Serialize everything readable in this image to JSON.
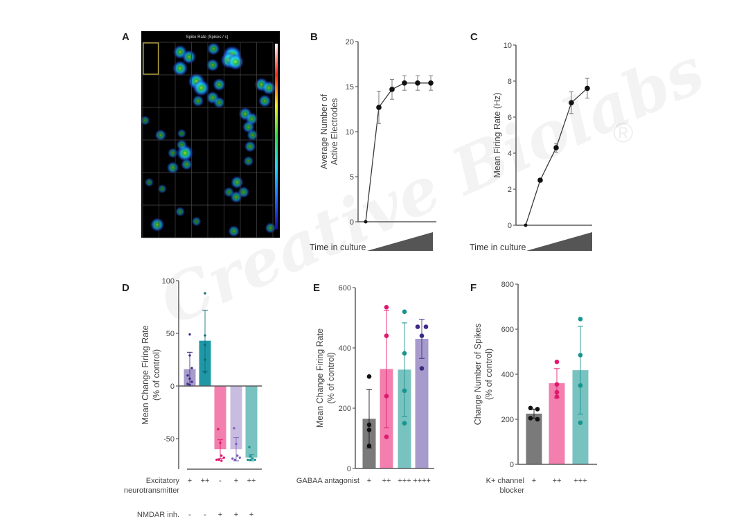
{
  "figure": {
    "watermark": "Creative Biolabs",
    "watermark_mark": "®",
    "colors": {
      "axis": "#5a5a5a",
      "line": "#3a3a3a",
      "marker": "#111111",
      "grey_bar": "#7a7a7a",
      "pink_bar": "#f27fae",
      "pink_dot": "#e0186e",
      "teal_bar": "#78c2c0",
      "teal_dot": "#17958e",
      "purple_bar": "#a79bcb",
      "purple_dot": "#3c2a86",
      "darkteal_bar": "#1f97a6",
      "lavender_bar": "#c8bde0",
      "heat_bg": "#000000"
    }
  },
  "chart_data": [
    {
      "panel": "A",
      "type": "heatmap",
      "title": "Spike Rate (Spikes / s)",
      "grid": {
        "rows": 6,
        "cols": 8
      },
      "colorbar": [
        "#1a0ba8",
        "#1d6cff",
        "#20d6ff",
        "#2ddc4a",
        "#f1ef1c",
        "#ff2a1a",
        "#ffffff"
      ],
      "highlighted_cell": {
        "row": 0,
        "col": 0
      },
      "hotspots": [
        {
          "r": 0,
          "c": 2,
          "x": 0.3,
          "y": 0.3,
          "s": 0.6
        },
        {
          "r": 0,
          "c": 2,
          "x": 0.3,
          "y": 0.8,
          "s": 0.7
        },
        {
          "r": 0,
          "c": 2,
          "x": 0.85,
          "y": 0.45,
          "s": 0.6
        },
        {
          "r": 0,
          "c": 4,
          "x": 0.35,
          "y": 0.2,
          "s": 0.5
        },
        {
          "r": 0,
          "c": 4,
          "x": 0.3,
          "y": 0.7,
          "s": 0.5
        },
        {
          "r": 0,
          "c": 5,
          "x": 0.5,
          "y": 0.4,
          "s": 1.0
        },
        {
          "r": 0,
          "c": 5,
          "x": 0.3,
          "y": 0.55,
          "s": 0.8
        },
        {
          "r": 0,
          "c": 5,
          "x": 0.7,
          "y": 0.6,
          "s": 0.8
        },
        {
          "r": 1,
          "c": 3,
          "x": 0.3,
          "y": 0.2,
          "s": 0.8
        },
        {
          "r": 1,
          "c": 3,
          "x": 0.6,
          "y": 0.4,
          "s": 0.8
        },
        {
          "r": 1,
          "c": 3,
          "x": 0.4,
          "y": 0.8,
          "s": 0.4
        },
        {
          "r": 1,
          "c": 4,
          "x": 0.7,
          "y": 0.3,
          "s": 0.5
        },
        {
          "r": 1,
          "c": 4,
          "x": 0.3,
          "y": 0.7,
          "s": 0.5
        },
        {
          "r": 1,
          "c": 4,
          "x": 0.7,
          "y": 0.85,
          "s": 0.4
        },
        {
          "r": 1,
          "c": 7,
          "x": 0.3,
          "y": 0.3,
          "s": 0.6
        },
        {
          "r": 1,
          "c": 7,
          "x": 0.75,
          "y": 0.4,
          "s": 0.6
        },
        {
          "r": 1,
          "c": 7,
          "x": 0.5,
          "y": 0.8,
          "s": 0.5
        },
        {
          "r": 2,
          "c": 0,
          "x": 0.15,
          "y": 0.4,
          "s": 0.25
        },
        {
          "r": 2,
          "c": 1,
          "x": 0.1,
          "y": 0.85,
          "s": 0.4
        },
        {
          "r": 2,
          "c": 2,
          "x": 0.4,
          "y": 0.8,
          "s": 0.2
        },
        {
          "r": 2,
          "c": 6,
          "x": 0.3,
          "y": 0.2,
          "s": 0.55
        },
        {
          "r": 2,
          "c": 6,
          "x": 0.7,
          "y": 0.35,
          "s": 0.5
        },
        {
          "r": 2,
          "c": 6,
          "x": 0.5,
          "y": 0.6,
          "s": 0.45
        },
        {
          "r": 2,
          "c": 6,
          "x": 0.75,
          "y": 0.85,
          "s": 0.4
        },
        {
          "r": 3,
          "c": 1,
          "x": 0.85,
          "y": 0.4,
          "s": 0.3
        },
        {
          "r": 3,
          "c": 1,
          "x": 0.85,
          "y": 0.85,
          "s": 0.45
        },
        {
          "r": 3,
          "c": 2,
          "x": 0.6,
          "y": 0.4,
          "s": 0.8
        },
        {
          "r": 3,
          "c": 2,
          "x": 0.4,
          "y": 0.15,
          "s": 0.35
        },
        {
          "r": 3,
          "c": 2,
          "x": 0.7,
          "y": 0.75,
          "s": 0.4
        },
        {
          "r": 3,
          "c": 6,
          "x": 0.6,
          "y": 0.2,
          "s": 0.4
        },
        {
          "r": 3,
          "c": 6,
          "x": 0.5,
          "y": 0.65,
          "s": 0.3
        },
        {
          "r": 4,
          "c": 5,
          "x": 0.8,
          "y": 0.3,
          "s": 0.5
        },
        {
          "r": 4,
          "c": 5,
          "x": 0.75,
          "y": 0.75,
          "s": 0.45
        },
        {
          "r": 4,
          "c": 5,
          "x": 0.3,
          "y": 0.6,
          "s": 0.3
        },
        {
          "r": 4,
          "c": 6,
          "x": 0.2,
          "y": 0.6,
          "s": 0.4
        },
        {
          "r": 4,
          "c": 0,
          "x": 0.4,
          "y": 0.3,
          "s": 0.2
        },
        {
          "r": 4,
          "c": 1,
          "x": 0.2,
          "y": 0.5,
          "s": 0.2
        },
        {
          "r": 5,
          "c": 0,
          "x": 0.9,
          "y": 0.6,
          "s": 0.6
        },
        {
          "r": 5,
          "c": 2,
          "x": 0.3,
          "y": 0.2,
          "s": 0.25
        },
        {
          "r": 5,
          "c": 3,
          "x": 0.3,
          "y": 0.5,
          "s": 0.25
        },
        {
          "r": 5,
          "c": 5,
          "x": 0.6,
          "y": 0.8,
          "s": 0.4
        },
        {
          "r": 5,
          "c": 7,
          "x": 0.85,
          "y": 0.7,
          "s": 0.35
        }
      ]
    },
    {
      "panel": "B",
      "type": "line",
      "ylabel": [
        "Average Number of",
        "Active Electrodes"
      ],
      "xlabel": "Time in culture",
      "ylim": [
        0,
        20
      ],
      "yticks": [
        0,
        5,
        10,
        15,
        20
      ],
      "x": [
        1,
        2,
        3,
        4,
        5,
        6
      ],
      "values": [
        0,
        12.7,
        14.7,
        15.4,
        15.4,
        15.4
      ],
      "errors": [
        0,
        1.8,
        1.1,
        0.8,
        0.8,
        0.8
      ]
    },
    {
      "panel": "C",
      "type": "line",
      "ylabel": [
        "Mean Firing Rate (Hz)"
      ],
      "xlabel": "Time in culture",
      "ylim": [
        0,
        10
      ],
      "yticks": [
        0,
        2,
        4,
        6,
        8,
        10
      ],
      "x": [
        1,
        2,
        3,
        4,
        5
      ],
      "values": [
        0,
        2.5,
        4.3,
        6.8,
        7.6
      ],
      "errors": [
        0,
        0.1,
        0.25,
        0.6,
        0.55
      ]
    },
    {
      "panel": "D",
      "type": "bar",
      "ylabel": [
        "Mean Change Firing Rate",
        "(% of control)"
      ],
      "ylim": [
        -80,
        100
      ],
      "yticks": [
        -50,
        0,
        50,
        100
      ],
      "categories": [
        "1",
        "2",
        "3",
        "4",
        "5"
      ],
      "values": [
        16,
        43,
        -60,
        -60,
        -68
      ],
      "errors": [
        16,
        29,
        9,
        11,
        3
      ],
      "bar_colors": [
        "#a79bcb",
        "#1f97a6",
        "#f27fae",
        "#c8bde0",
        "#78c2c0"
      ],
      "dot_colors": [
        "#3c2a86",
        "#0e6b78",
        "#e0186e",
        "#7c62b8",
        "#17958e"
      ],
      "points": [
        [
          49,
          29,
          17,
          10,
          7,
          4,
          2,
          1
        ],
        [
          88,
          48,
          39,
          25,
          13
        ],
        [
          -41,
          -54,
          -66,
          -68,
          -70,
          -70,
          -71
        ],
        [
          -40,
          -55,
          -66,
          -68,
          -69,
          -70
        ],
        [
          -58,
          -67,
          -69,
          -70,
          -70,
          -70
        ]
      ],
      "conditions": [
        {
          "label": [
            "Excitatory",
            "neurotransmitter"
          ],
          "values": [
            "+",
            "++",
            "-",
            "+",
            "++"
          ]
        },
        {
          "label": [
            "NMDAR inh."
          ],
          "values": [
            "-",
            "-",
            "+",
            "+",
            "+"
          ]
        }
      ]
    },
    {
      "panel": "E",
      "type": "bar",
      "ylabel": [
        "Mean Change Firing Rate",
        "(% of control)"
      ],
      "ylim": [
        0,
        600
      ],
      "yticks": [
        0,
        200,
        400,
        600
      ],
      "categories": [
        "+",
        "++",
        "+++",
        "++++"
      ],
      "values": [
        165,
        330,
        328,
        430
      ],
      "errors": [
        97,
        195,
        155,
        65
      ],
      "bar_colors": [
        "#7a7a7a",
        "#f27fae",
        "#78c2c0",
        "#a79bcb"
      ],
      "dot_colors": [
        "#111111",
        "#e0186e",
        "#17958e",
        "#3c2a86"
      ],
      "points": [
        [
          305,
          145,
          128,
          75
        ],
        [
          535,
          440,
          240,
          105
        ],
        [
          520,
          382,
          258,
          150
        ],
        [
          470,
          470,
          440,
          332
        ]
      ],
      "conditions": [
        {
          "label": [
            "GABAA antagonist"
          ],
          "values": [
            "+",
            "++",
            "+++",
            "++++"
          ]
        }
      ]
    },
    {
      "panel": "F",
      "type": "bar",
      "ylabel": [
        "Change Number of Spikes",
        "(% of control)"
      ],
      "ylim": [
        0,
        800
      ],
      "yticks": [
        0,
        200,
        400,
        600,
        800
      ],
      "categories": [
        "+",
        "++",
        "+++"
      ],
      "values": [
        225,
        360,
        418
      ],
      "errors": [
        20,
        65,
        195
      ],
      "bar_colors": [
        "#7a7a7a",
        "#f27fae",
        "#78c2c0"
      ],
      "dot_colors": [
        "#111111",
        "#e0186e",
        "#17958e"
      ],
      "points": [
        [
          250,
          245,
          205,
          200
        ],
        [
          455,
          355,
          320,
          300
        ],
        [
          645,
          485,
          350,
          185
        ]
      ],
      "conditions": [
        {
          "label": [
            "K+ channel",
            "blocker"
          ],
          "values": [
            "+",
            "++",
            "+++"
          ]
        }
      ]
    }
  ]
}
